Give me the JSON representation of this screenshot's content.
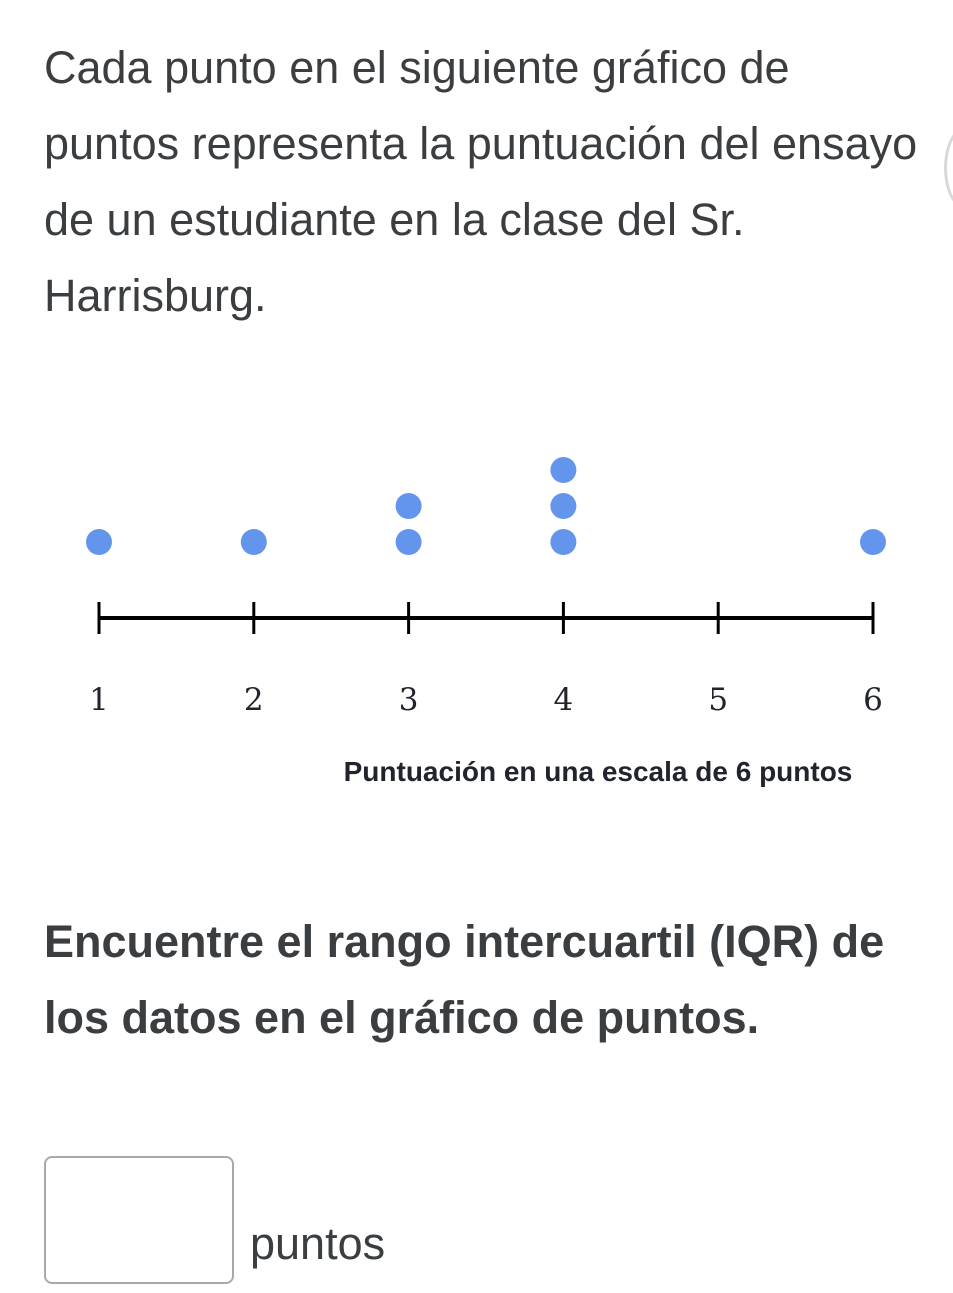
{
  "problem": {
    "intro": "Cada punto en el siguiente gráfico de puntos representa la puntuación del ensayo de un estudiante en la clase del Sr. Harrisburg.",
    "question": "Encuentre el rango intercuartil (IQR) de los datos en el gráfico de puntos."
  },
  "answer": {
    "value": "",
    "unit": "puntos"
  },
  "chart_data": {
    "type": "dot_plot",
    "xlabel": "Puntuación en una escala de 6 puntos",
    "categories": [
      1,
      2,
      3,
      4,
      5,
      6
    ],
    "tick_labels": [
      "1",
      "2",
      "3",
      "4",
      "5",
      "6"
    ],
    "counts": [
      1,
      1,
      2,
      3,
      0,
      1
    ],
    "xlim": [
      1,
      6
    ],
    "dot_color": "#6495ed",
    "axis_color": "#000000"
  }
}
